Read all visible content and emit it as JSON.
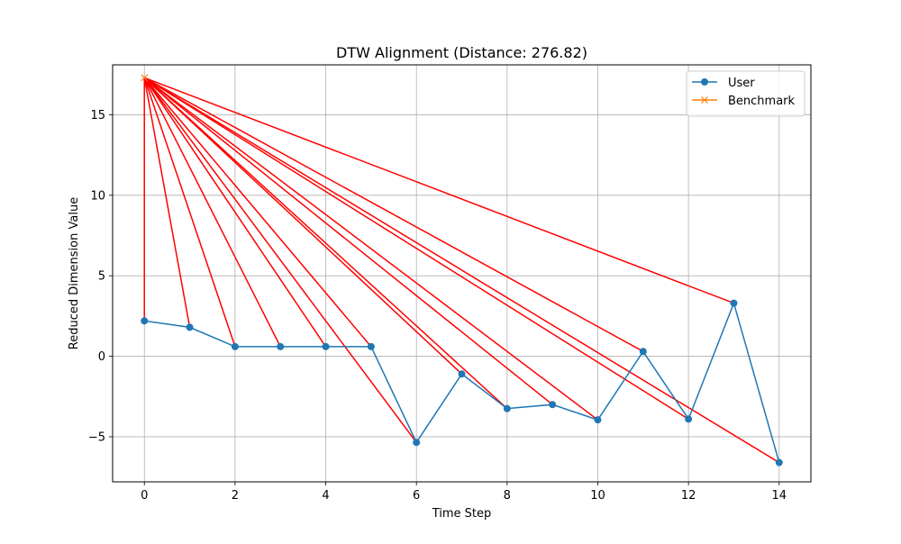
{
  "chart_data": {
    "type": "line",
    "title": "DTW Alignment (Distance: 276.82)",
    "xlabel": "Time Step",
    "ylabel": "Reduced Dimension Value",
    "xlim": [
      -0.7,
      14.7
    ],
    "ylim": [
      -7.8,
      18.1
    ],
    "xticks": [
      0,
      2,
      4,
      6,
      8,
      10,
      12,
      14
    ],
    "yticks": [
      -5,
      0,
      5,
      10,
      15
    ],
    "xtick_labels": [
      "0",
      "2",
      "4",
      "6",
      "8",
      "10",
      "12",
      "14"
    ],
    "ytick_labels": [
      "−5",
      "0",
      "5",
      "10",
      "15"
    ],
    "grid": true,
    "legend": {
      "position": "top-right",
      "entries": [
        "User",
        "Benchmark"
      ]
    },
    "series": [
      {
        "name": "User",
        "color": "#1f77b4",
        "marker": "circle",
        "x": [
          0,
          1,
          2,
          3,
          4,
          5,
          6,
          7,
          8,
          9,
          10,
          11,
          12,
          13,
          14
        ],
        "y": [
          2.2,
          1.8,
          0.6,
          0.6,
          0.6,
          0.6,
          -5.35,
          -1.1,
          -3.25,
          -3.0,
          -3.95,
          0.3,
          -3.9,
          3.3,
          -6.6
        ]
      },
      {
        "name": "Benchmark",
        "color": "#ff7f0e",
        "marker": "x",
        "x": [
          0
        ],
        "y": [
          17.3
        ]
      }
    ],
    "alignment": {
      "color": "#ff0000",
      "pairs": [
        [
          0,
          0
        ],
        [
          0,
          1
        ],
        [
          0,
          2
        ],
        [
          0,
          3
        ],
        [
          0,
          4
        ],
        [
          0,
          5
        ],
        [
          0,
          6
        ],
        [
          0,
          7
        ],
        [
          0,
          8
        ],
        [
          0,
          9
        ],
        [
          0,
          10
        ],
        [
          0,
          11
        ],
        [
          0,
          12
        ],
        [
          0,
          13
        ],
        [
          0,
          14
        ]
      ]
    }
  }
}
